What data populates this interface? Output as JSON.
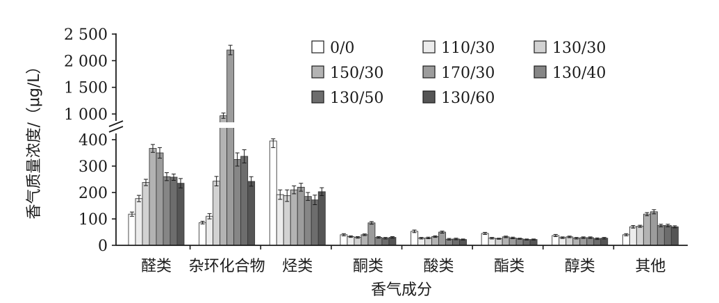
{
  "chart_data": {
    "type": "bar",
    "xlabel": "香气成分",
    "ylabel": "香气质量浓度/（μg/L）",
    "categories": [
      "醛类",
      "杂环化合物",
      "烃类",
      "酮类",
      "酸类",
      "酯类",
      "醇类",
      "其他"
    ],
    "y_lower_ticks": [
      "0",
      "100",
      "200",
      "300",
      "400"
    ],
    "y_upper_ticks": [
      "1 000",
      "1 500",
      "2 000",
      "2 500"
    ],
    "y_axis_break": [
      400,
      1000
    ],
    "ylim": [
      0,
      2500
    ],
    "legend_position": "top-right",
    "series": [
      {
        "name": "0/0",
        "color": "#ffffff",
        "values": [
          118,
          86,
          395,
          40,
          53,
          45,
          37,
          40
        ],
        "errors": [
          8,
          5,
          25,
          4,
          5,
          4,
          4,
          4
        ]
      },
      {
        "name": "110/30",
        "color": "#ececec",
        "values": [
          177,
          110,
          192,
          33,
          27,
          27,
          29,
          70
        ],
        "errors": [
          12,
          10,
          18,
          3,
          3,
          3,
          3,
          5
        ]
      },
      {
        "name": "130/30",
        "color": "#d2d2d2",
        "values": [
          238,
          243,
          188,
          30,
          28,
          25,
          32,
          72
        ],
        "errors": [
          12,
          18,
          22,
          3,
          3,
          2,
          3,
          4
        ]
      },
      {
        "name": "150/30",
        "color": "#b3b3b3",
        "values": [
          367,
          958,
          210,
          40,
          33,
          32,
          27,
          118
        ],
        "errors": [
          15,
          60,
          15,
          3,
          3,
          3,
          3,
          6
        ]
      },
      {
        "name": "170/30",
        "color": "#9c9c9c",
        "values": [
          350,
          2200,
          220,
          85,
          50,
          28,
          29,
          127
        ],
        "errors": [
          20,
          90,
          15,
          5,
          4,
          3,
          3,
          8
        ]
      },
      {
        "name": "130/40",
        "color": "#868686",
        "values": [
          260,
          325,
          185,
          30,
          23,
          25,
          29,
          75
        ],
        "errors": [
          15,
          25,
          15,
          3,
          3,
          2,
          3,
          5
        ]
      },
      {
        "name": "130/50",
        "color": "#6d6d6d",
        "values": [
          258,
          337,
          172,
          27,
          24,
          22,
          25,
          75
        ],
        "errors": [
          12,
          25,
          18,
          3,
          3,
          2,
          3,
          5
        ]
      },
      {
        "name": "130/60",
        "color": "#555555",
        "values": [
          235,
          242,
          203,
          30,
          22,
          22,
          27,
          70
        ],
        "errors": [
          18,
          18,
          15,
          3,
          2,
          2,
          3,
          4
        ]
      }
    ]
  }
}
